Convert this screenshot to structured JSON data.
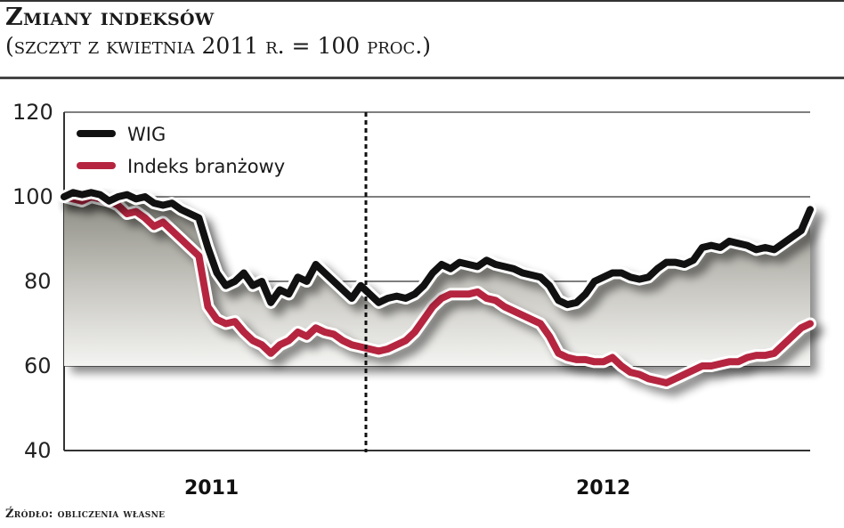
{
  "header": {
    "title": "Zmiany indeksów",
    "subtitle": "(szczyt z kwietnia 2011 r. = 100 proc.)"
  },
  "footer": {
    "source": "Źródło: obliczenia własne"
  },
  "colors": {
    "wig": "#111111",
    "branch_index": "#b5253f",
    "fill_dark": "#8f8e86",
    "fill_light": "#f2f2f0",
    "grid": "#333333"
  },
  "chart_data": {
    "type": "line",
    "title": "Zmiany indeksów",
    "subtitle": "(szczyt z kwietnia 2011 r. = 100 proc.)",
    "xlabel": "",
    "ylabel": "",
    "ylim": [
      40,
      120
    ],
    "yticks": [
      40,
      60,
      80,
      100,
      120
    ],
    "x_tick_labels": [
      "2011",
      "2012"
    ],
    "grid": true,
    "legend_position": "top-left inside",
    "divider": "dashed vertical line at the 2011/2012 year boundary",
    "shaded_area": "gradient fill between the WIG line and the branch index line",
    "x": [
      0,
      1,
      2,
      3,
      4,
      5,
      6,
      7,
      8,
      9,
      10,
      11,
      12,
      13,
      14,
      15,
      16,
      17,
      18,
      19,
      20,
      21,
      22,
      23,
      24,
      25,
      26,
      27,
      28,
      29,
      30,
      31,
      32,
      33,
      34,
      35,
      36,
      37,
      38,
      39,
      40,
      41,
      42,
      43,
      44,
      45,
      46,
      47,
      48,
      49,
      50,
      51,
      52,
      53,
      54,
      55,
      56,
      57,
      58,
      59,
      60,
      61,
      62,
      63,
      64,
      65,
      66,
      67,
      68,
      69,
      70,
      71,
      72,
      73,
      74,
      75,
      76,
      77,
      78,
      79,
      80,
      81,
      82,
      83
    ],
    "series": [
      {
        "name": "WIG",
        "color": "#111111",
        "values": [
          100,
          101,
          100.5,
          101,
          100.5,
          99,
          100,
          100.5,
          99.5,
          100,
          98.5,
          98,
          98.5,
          97,
          96,
          95,
          88,
          82,
          79,
          80,
          82,
          79,
          80,
          75,
          78,
          77,
          81,
          80,
          84,
          82,
          80,
          78,
          76,
          79,
          77,
          75,
          76,
          76.5,
          76,
          77,
          79,
          82,
          84,
          83,
          84.5,
          84,
          83.5,
          85,
          84,
          83.5,
          83,
          82,
          81.5,
          81,
          79,
          75.5,
          74.5,
          75,
          77,
          80,
          81,
          82,
          82,
          81,
          80.5,
          81,
          83,
          84.5,
          84.5,
          84,
          85,
          88,
          88.5,
          88,
          89.5,
          89,
          88.5,
          87.5,
          88,
          87.5,
          89,
          90.5,
          92,
          97
        ]
      },
      {
        "name": "Indeks branżowy",
        "color": "#b5253f",
        "values": [
          100,
          99.5,
          99,
          100,
          99.5,
          99,
          98,
          96,
          96.5,
          95,
          93,
          94,
          92,
          90,
          88,
          86,
          74,
          71,
          70,
          70.5,
          68,
          66,
          65,
          63,
          65,
          66,
          68,
          67,
          69,
          68,
          67.5,
          66,
          65,
          64.5,
          64,
          63.5,
          64,
          65,
          66,
          68,
          71,
          74,
          76,
          77,
          77,
          77,
          77.5,
          76,
          75.5,
          74,
          73,
          72,
          71,
          70,
          67,
          63,
          62,
          61.5,
          61.5,
          61,
          61,
          62,
          60,
          58.5,
          58,
          57,
          56.5,
          56,
          57,
          58,
          59,
          60,
          60,
          60.5,
          61,
          61,
          62,
          62.5,
          62.5,
          63,
          65,
          67,
          69,
          70
        ]
      }
    ]
  },
  "legend": {
    "items": [
      {
        "label": "WIG",
        "color": "#111111"
      },
      {
        "label": "Indeks branżowy",
        "color": "#b5253f"
      }
    ]
  },
  "axes": {
    "y_labels": [
      "120",
      "100",
      "80",
      "60",
      "40"
    ],
    "x_labels": [
      "2011",
      "2012"
    ]
  }
}
